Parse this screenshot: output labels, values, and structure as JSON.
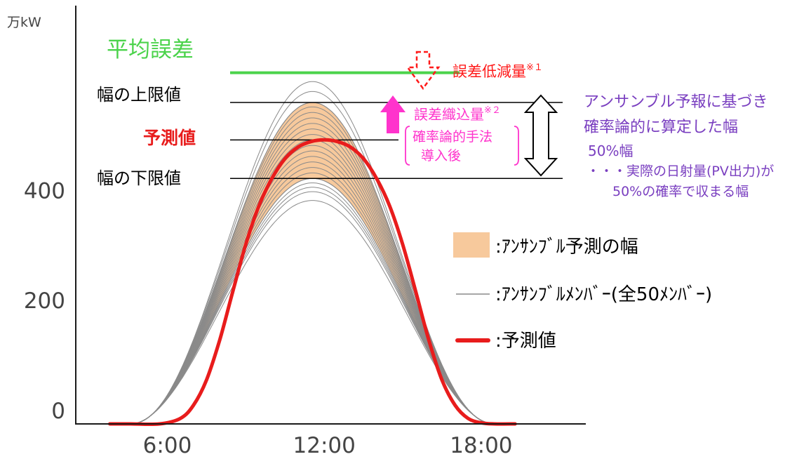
{
  "chart_data": {
    "type": "line",
    "title": "",
    "xlabel": "",
    "ylabel": "万kW",
    "ylim": [
      0,
      760
    ],
    "xlim": [
      2.5,
      22.0
    ],
    "x_ticks": [
      {
        "value": 6,
        "label": "6:00"
      },
      {
        "value": 12,
        "label": "12:00"
      },
      {
        "value": 18,
        "label": "18:00"
      }
    ],
    "y_ticks": [
      {
        "value": 0,
        "label": "0"
      },
      {
        "value": 200,
        "label": "200"
      },
      {
        "value": 400,
        "label": "400"
      }
    ],
    "grid": false,
    "forecast": {
      "start": 4.6,
      "end": 18.5,
      "peak_time": 12.0,
      "peak": 516,
      "x": [
        4.6,
        5.7,
        6.5,
        7.0,
        7.5,
        8.0,
        8.5,
        9.0,
        9.5,
        10.0,
        10.5,
        11.0,
        11.5,
        12.0,
        12.5,
        13.0,
        13.5,
        14.0,
        14.5,
        15.0,
        15.5,
        16.0,
        16.5,
        17.0,
        17.5,
        18.0,
        18.5
      ],
      "y": [
        0,
        0,
        10,
        34,
        80,
        152,
        240,
        326,
        396,
        446,
        482,
        503,
        513,
        516,
        513,
        503,
        482,
        446,
        396,
        326,
        240,
        152,
        80,
        34,
        10,
        2,
        0
      ]
    },
    "ensemble": {
      "member_count": 50,
      "band_upper": 584,
      "band_lower": 446,
      "member_peaks": [
        622,
        604,
        584,
        584,
        576,
        566,
        556,
        546,
        536,
        526,
        516,
        506,
        496,
        486,
        476,
        466,
        456,
        446,
        446,
        438,
        430,
        422,
        406
      ]
    },
    "reference_lines": {
      "mean_error": 638,
      "upper_limit": 584,
      "forecast_value": 516,
      "lower_limit": 446
    }
  },
  "labels": {
    "mean_error": "平均誤差",
    "upper_limit": "幅の上限値",
    "forecast_value": "予測値",
    "lower_limit": "幅の下限値",
    "error_reduction": "誤差低減量",
    "error_reduction_mark": "※１",
    "error_incorporated": "誤差織込量",
    "error_incorporated_mark": "※２",
    "method_line1": "確率論的手法",
    "method_line2": "導入後"
  },
  "explanation": {
    "line1": "アンサンブル予報に基づき",
    "line2": "確率論的に算定した幅",
    "line3": "50%幅",
    "line4": "・・・実際の日射量(PV出力)が",
    "line5": "50%の確率で収まる幅"
  },
  "legend": {
    "band": ":ｱﾝｻﾝﾌﾞﾙ予測の幅",
    "members": ":ｱﾝｻﾝﾌﾞﾙﾒﾝﾊﾞｰ(全50ﾒﾝﾊﾞｰ)",
    "forecast": ":予測値"
  },
  "colors": {
    "forecast": "#e81c1c",
    "band": "#f7c99c",
    "member": "#8a8a8a",
    "mean_error": "#4bd34b",
    "error_label": "#ff1a1a",
    "incorporated": "#ff33cc",
    "explanation": "#7a3fc0",
    "axis": "#1a1a1a",
    "tick_label": "#444444"
  }
}
